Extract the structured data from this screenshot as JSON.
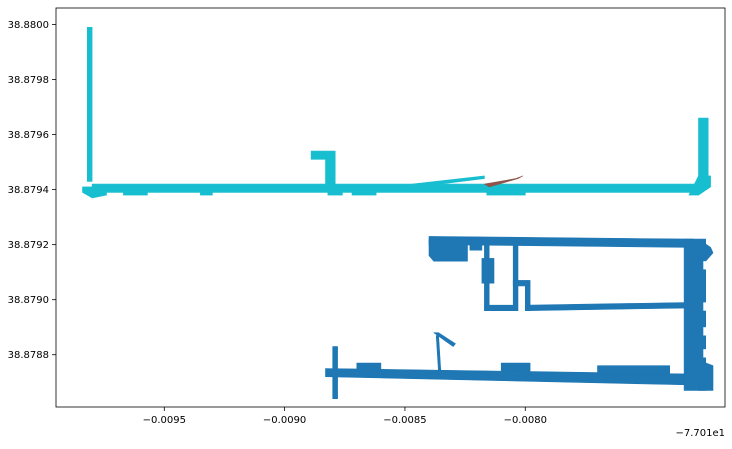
{
  "chart_data": {
    "type": "map",
    "title": "",
    "xlabel": "",
    "ylabel": "",
    "x_offset_label": "−7.701e1",
    "xlim": [
      -0.00995,
      -0.00717
    ],
    "ylim": [
      38.87861,
      38.88006
    ],
    "x_ticks": [
      {
        "value": -0.0095,
        "label": "−0.0095"
      },
      {
        "value": -0.009,
        "label": "−0.0090"
      },
      {
        "value": -0.0085,
        "label": "−0.0085"
      },
      {
        "value": -0.008,
        "label": "−0.0080"
      }
    ],
    "y_ticks": [
      {
        "value": 38.8788,
        "label": "38.8788"
      },
      {
        "value": 38.879,
        "label": "38.8790"
      },
      {
        "value": 38.8792,
        "label": "38.8792"
      },
      {
        "value": 38.8794,
        "label": "38.8794"
      },
      {
        "value": 38.8796,
        "label": "38.8796"
      },
      {
        "value": 38.8798,
        "label": "38.8798"
      },
      {
        "value": 38.88,
        "label": "38.8800"
      }
    ],
    "grid": false,
    "series": [
      {
        "color": "#17becf",
        "shapes": [
          {
            "points": [
              [
                -0.00982,
                38.87999
              ],
              [
                -0.0098,
                38.87999
              ],
              [
                -0.0098,
                38.87943
              ],
              [
                -0.00982,
                38.87943
              ]
            ]
          },
          {
            "points": [
              [
                -0.00984,
                38.87941
              ],
              [
                -0.00974,
                38.87941
              ],
              [
                -0.00974,
                38.87938
              ],
              [
                -0.0098,
                38.87937
              ],
              [
                -0.00984,
                38.87939
              ]
            ]
          },
          {
            "points": [
              [
                -0.0098,
                38.87942
              ],
              [
                -0.00728,
                38.87942
              ],
              [
                -0.00728,
                38.87939
              ],
              [
                -0.0098,
                38.87939
              ]
            ]
          },
          {
            "points": [
              [
                -0.00967,
                38.8794
              ],
              [
                -0.00957,
                38.8794
              ],
              [
                -0.00957,
                38.87938
              ],
              [
                -0.00967,
                38.87938
              ]
            ]
          },
          {
            "points": [
              [
                -0.00935,
                38.8794
              ],
              [
                -0.0093,
                38.8794
              ],
              [
                -0.0093,
                38.87938
              ],
              [
                -0.00935,
                38.87938
              ]
            ]
          },
          {
            "points": [
              [
                -0.00882,
                38.8794
              ],
              [
                -0.00876,
                38.8794
              ],
              [
                -0.00876,
                38.87938
              ],
              [
                -0.00882,
                38.87938
              ]
            ]
          },
          {
            "points": [
              [
                -0.00872,
                38.8794
              ],
              [
                -0.00862,
                38.8794
              ],
              [
                -0.00862,
                38.87938
              ],
              [
                -0.00872,
                38.87938
              ]
            ]
          },
          {
            "points": [
              [
                -0.00816,
                38.8794
              ],
              [
                -0.008,
                38.8794
              ],
              [
                -0.008,
                38.87938
              ],
              [
                -0.00816,
                38.87938
              ]
            ]
          },
          {
            "points": [
              [
                -0.00889,
                38.87954
              ],
              [
                -0.00879,
                38.87954
              ],
              [
                -0.00879,
                38.87941
              ],
              [
                -0.00883,
                38.87941
              ],
              [
                -0.00883,
                38.87951
              ],
              [
                -0.00889,
                38.87951
              ]
            ]
          },
          {
            "points": [
              [
                -0.00847,
                38.87942
              ],
              [
                -0.00817,
                38.87945
              ],
              [
                -0.00817,
                38.87944
              ],
              [
                -0.00845,
                38.87941
              ]
            ]
          },
          {
            "points": [
              [
                -0.00728,
                38.87966
              ],
              [
                -0.00724,
                38.87966
              ],
              [
                -0.00724,
                38.87945
              ],
              [
                -0.00728,
                38.87945
              ]
            ]
          },
          {
            "points": [
              [
                -0.00728,
                38.87945
              ],
              [
                -0.00723,
                38.87945
              ],
              [
                -0.00723,
                38.87941
              ],
              [
                -0.00728,
                38.87938
              ],
              [
                -0.00732,
                38.87938
              ]
            ]
          }
        ]
      },
      {
        "color": "#8c564b",
        "shapes": [
          {
            "points": [
              [
                -0.00817,
                38.87942
              ],
              [
                -0.00804,
                38.87944
              ],
              [
                -0.00801,
                38.87945
              ],
              [
                -0.00803,
                38.87944
              ],
              [
                -0.00815,
                38.87941
              ]
            ]
          }
        ]
      },
      {
        "color": "#1f77b4",
        "shapes": [
          {
            "points": [
              [
                -0.0088,
                38.87883
              ],
              [
                -0.00878,
                38.87883
              ],
              [
                -0.00878,
                38.87864
              ],
              [
                -0.0088,
                38.87864
              ]
            ]
          },
          {
            "points": [
              [
                -0.00883,
                38.87875
              ],
              [
                -0.0073,
                38.87873
              ],
              [
                -0.0073,
                38.87869
              ],
              [
                -0.00883,
                38.87872
              ]
            ]
          },
          {
            "points": [
              [
                -0.0087,
                38.87877
              ],
              [
                -0.0086,
                38.87877
              ],
              [
                -0.0086,
                38.87874
              ],
              [
                -0.0087,
                38.87874
              ]
            ]
          },
          {
            "points": [
              [
                -0.0081,
                38.87877
              ],
              [
                -0.00798,
                38.87877
              ],
              [
                -0.00798,
                38.87874
              ],
              [
                -0.0081,
                38.87874
              ]
            ]
          },
          {
            "points": [
              [
                -0.0077,
                38.87876
              ],
              [
                -0.0074,
                38.87876
              ],
              [
                -0.0074,
                38.87873
              ],
              [
                -0.0077,
                38.87873
              ]
            ]
          },
          {
            "points": [
              [
                -0.00734,
                38.87922
              ],
              [
                -0.00725,
                38.87922
              ],
              [
                -0.00725,
                38.87867
              ],
              [
                -0.00734,
                38.87867
              ]
            ]
          },
          {
            "points": [
              [
                -0.00728,
                38.87922
              ],
              [
                -0.00723,
                38.87919
              ],
              [
                -0.00722,
                38.87917
              ],
              [
                -0.00725,
                38.87914
              ],
              [
                -0.00728,
                38.87913
              ]
            ]
          },
          {
            "points": [
              [
                -0.00728,
                38.87878
              ],
              [
                -0.00722,
                38.87876
              ],
              [
                -0.00722,
                38.87867
              ],
              [
                -0.00728,
                38.87867
              ]
            ]
          },
          {
            "points": [
              [
                -0.0084,
                38.87923
              ],
              [
                -0.0073,
                38.87922
              ],
              [
                -0.0073,
                38.87919
              ],
              [
                -0.0084,
                38.8792
              ]
            ]
          },
          {
            "points": [
              [
                -0.0084,
                38.87922
              ],
              [
                -0.00827,
                38.87922
              ],
              [
                -0.00824,
                38.8792
              ],
              [
                -0.00824,
                38.87914
              ],
              [
                -0.0083,
                38.87914
              ],
              [
                -0.00838,
                38.87914
              ],
              [
                -0.0084,
                38.87916
              ]
            ]
          },
          {
            "points": [
              [
                -0.00823,
                38.87922
              ],
              [
                -0.00818,
                38.87922
              ],
              [
                -0.00818,
                38.87918
              ],
              [
                -0.00823,
                38.87918
              ]
            ]
          },
          {
            "points": [
              [
                -0.00818,
                38.87915
              ],
              [
                -0.00813,
                38.87915
              ],
              [
                -0.00813,
                38.87906
              ],
              [
                -0.00818,
                38.87906
              ]
            ]
          },
          {
            "points": [
              [
                -0.00817,
                38.87921
              ],
              [
                -0.00815,
                38.87921
              ],
              [
                -0.00815,
                38.87897
              ],
              [
                -0.00817,
                38.87897
              ]
            ]
          },
          {
            "points": [
              [
                -0.00817,
                38.87898
              ],
              [
                -0.00803,
                38.87898
              ],
              [
                -0.00803,
                38.87896
              ],
              [
                -0.00817,
                38.87896
              ]
            ]
          },
          {
            "points": [
              [
                -0.00805,
                38.87898
              ],
              [
                -0.00803,
                38.87898
              ],
              [
                -0.00803,
                38.87921
              ],
              [
                -0.00805,
                38.87921
              ]
            ]
          },
          {
            "points": [
              [
                -0.00805,
                38.87907
              ],
              [
                -0.00798,
                38.87907
              ],
              [
                -0.00798,
                38.87905
              ],
              [
                -0.00805,
                38.87905
              ]
            ]
          },
          {
            "points": [
              [
                -0.008,
                38.87905
              ],
              [
                -0.00798,
                38.87905
              ],
              [
                -0.00798,
                38.87896
              ],
              [
                -0.008,
                38.87896
              ]
            ]
          },
          {
            "points": [
              [
                -0.008,
                38.87898
              ],
              [
                -0.0073,
                38.87899
              ],
              [
                -0.0073,
                38.87897
              ],
              [
                -0.008,
                38.87896
              ]
            ]
          },
          {
            "points": [
              [
                -0.00837,
                38.87887
              ],
              [
                -0.00836,
                38.87887
              ],
              [
                -0.00835,
                38.87873
              ],
              [
                -0.00836,
                38.87873
              ]
            ]
          },
          {
            "points": [
              [
                -0.00838,
                38.87888
              ],
              [
                -0.00836,
                38.87888
              ],
              [
                -0.00829,
                38.87884
              ],
              [
                -0.0083,
                38.87883
              ]
            ]
          }
        ]
      }
    ],
    "white_notches": [
      {
        "points": [
          [
            -0.00726,
            38.87914
          ],
          [
            -0.00724,
            38.87914
          ],
          [
            -0.00724,
            38.87911
          ],
          [
            -0.00726,
            38.87911
          ]
        ]
      },
      {
        "points": [
          [
            -0.00726,
            38.87899
          ],
          [
            -0.00724,
            38.87899
          ],
          [
            -0.00724,
            38.87896
          ],
          [
            -0.00726,
            38.87896
          ]
        ]
      },
      {
        "points": [
          [
            -0.00726,
            38.8789
          ],
          [
            -0.00724,
            38.8789
          ],
          [
            -0.00724,
            38.87887
          ],
          [
            -0.00726,
            38.87887
          ]
        ]
      },
      {
        "points": [
          [
            -0.00726,
            38.87882
          ],
          [
            -0.00724,
            38.87882
          ],
          [
            -0.00724,
            38.87879
          ],
          [
            -0.00726,
            38.87879
          ]
        ]
      }
    ]
  }
}
